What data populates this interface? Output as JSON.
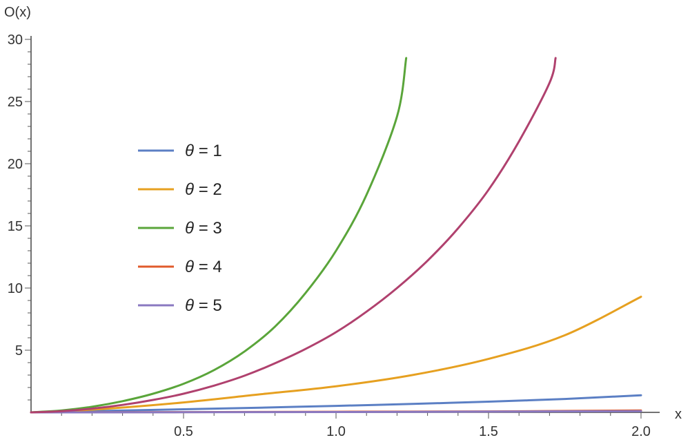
{
  "chart_data": {
    "type": "line",
    "xlabel": "x",
    "ylabel": "O(x)",
    "xlim": [
      0,
      2.05
    ],
    "ylim": [
      0,
      30
    ],
    "x_ticks": [
      0.5,
      1.0,
      1.5,
      2.0
    ],
    "x_tick_labels": [
      "0.5",
      "1.0",
      "1.5",
      "2.0"
    ],
    "y_ticks": [
      5,
      10,
      15,
      20,
      25,
      30
    ],
    "y_tick_labels": [
      "5",
      "10",
      "15",
      "20",
      "25",
      "30"
    ],
    "legend_position": "left",
    "legend_prefix": "θ",
    "series": [
      {
        "name": "θ = 1",
        "color": "#5b7fc4",
        "points": [
          [
            0,
            0
          ],
          [
            0.25,
            0.12
          ],
          [
            0.5,
            0.25
          ],
          [
            0.75,
            0.38
          ],
          [
            1.0,
            0.52
          ],
          [
            1.25,
            0.68
          ],
          [
            1.5,
            0.86
          ],
          [
            1.75,
            1.08
          ],
          [
            2.0,
            1.38
          ]
        ]
      },
      {
        "name": "θ = 2",
        "color": "#e6a020",
        "points": [
          [
            0,
            0
          ],
          [
            0.1,
            0.1
          ],
          [
            0.25,
            0.3
          ],
          [
            0.5,
            0.8
          ],
          [
            0.75,
            1.45
          ],
          [
            1.0,
            2.1
          ],
          [
            1.25,
            3.0
          ],
          [
            1.5,
            4.3
          ],
          [
            1.75,
            6.2
          ],
          [
            2.0,
            9.3
          ]
        ]
      },
      {
        "name": "θ = 3",
        "color": "#5aa53a",
        "points": [
          [
            0,
            0
          ],
          [
            0.1,
            0.15
          ],
          [
            0.2,
            0.45
          ],
          [
            0.3,
            0.9
          ],
          [
            0.4,
            1.5
          ],
          [
            0.5,
            2.3
          ],
          [
            0.6,
            3.4
          ],
          [
            0.7,
            4.9
          ],
          [
            0.8,
            6.9
          ],
          [
            0.9,
            9.6
          ],
          [
            1.0,
            13.0
          ],
          [
            1.1,
            17.5
          ],
          [
            1.2,
            23.8
          ],
          [
            1.23,
            28.5
          ]
        ]
      },
      {
        "name": "θ = 4",
        "color": "#e05a2b",
        "points": [
          [
            0,
            0
          ],
          [
            0.5,
            0.02
          ],
          [
            1.0,
            0.05
          ],
          [
            1.5,
            0.08
          ],
          [
            2.0,
            0.15
          ]
        ]
      },
      {
        "name": "θ = 5",
        "color": "#8a78c0",
        "points": [
          [
            0,
            0
          ],
          [
            0.5,
            0.01
          ],
          [
            1.0,
            0.03
          ],
          [
            1.5,
            0.06
          ],
          [
            2.0,
            0.1
          ]
        ]
      },
      {
        "name": "",
        "color": "#b0416e",
        "points": [
          [
            0,
            0
          ],
          [
            0.1,
            0.1
          ],
          [
            0.2,
            0.3
          ],
          [
            0.3,
            0.6
          ],
          [
            0.4,
            1.0
          ],
          [
            0.5,
            1.5
          ],
          [
            0.6,
            2.15
          ],
          [
            0.7,
            2.95
          ],
          [
            0.8,
            3.95
          ],
          [
            0.9,
            5.1
          ],
          [
            1.0,
            6.45
          ],
          [
            1.1,
            8.1
          ],
          [
            1.2,
            10.0
          ],
          [
            1.3,
            12.2
          ],
          [
            1.4,
            14.8
          ],
          [
            1.5,
            17.9
          ],
          [
            1.6,
            21.8
          ],
          [
            1.7,
            26.5
          ],
          [
            1.72,
            28.5
          ]
        ]
      }
    ],
    "legend": [
      {
        "symbol": "θ",
        "rest": " = 1",
        "color": "#5b7fc4"
      },
      {
        "symbol": "θ",
        "rest": " = 2",
        "color": "#e6a020"
      },
      {
        "symbol": "θ",
        "rest": " = 3",
        "color": "#5aa53a"
      },
      {
        "symbol": "θ",
        "rest": " = 4",
        "color": "#e05a2b"
      },
      {
        "symbol": "θ",
        "rest": " = 5",
        "color": "#8a78c0"
      }
    ]
  }
}
